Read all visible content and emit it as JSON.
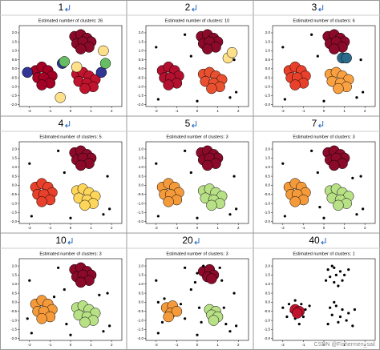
{
  "axes": {
    "xlim": [
      -2.5,
      2.5
    ],
    "ylim": [
      -2.1,
      2.4
    ],
    "xticks": [
      -2,
      -1,
      0,
      1,
      2
    ],
    "yticks": [
      {
        "value": -2.0,
        "label": "-2.0"
      },
      -1.5,
      {
        "value": -1.0,
        "label": "-1.0"
      },
      -0.5,
      {
        "value": 0.0,
        "label": "0.0"
      },
      0.5,
      {
        "value": 1.0,
        "label": "1.0"
      },
      1.5,
      {
        "value": 2.0,
        "label": "2.0"
      }
    ]
  },
  "watermark": "CSDN @Fishermen_sail",
  "chart_data": [
    {
      "type": "scatter",
      "header": "1",
      "title": "Estimated number of clusters: 26",
      "series": [
        {
          "color": "#8b0a2a",
          "x": [
            0.2,
            0.5,
            0.8,
            1.0,
            0.3,
            0.6,
            0.9,
            0.5
          ],
          "y": [
            1.8,
            1.9,
            1.7,
            1.5,
            1.4,
            1.5,
            1.2,
            1.1
          ]
        },
        {
          "color": "#a50026",
          "x": [
            -1.7,
            -1.4,
            -1.1,
            -0.9,
            -1.6,
            -1.3,
            -1.0,
            -1.4
          ],
          "y": [
            -0.1,
            0.1,
            -0.1,
            -0.4,
            -0.5,
            -0.5,
            -0.8,
            -0.9
          ]
        },
        {
          "color": "#c0132d",
          "x": [
            0.3,
            0.6,
            0.9,
            1.2,
            0.4,
            0.8,
            1.1,
            0.7
          ],
          "y": [
            -0.3,
            -0.2,
            -0.4,
            -0.6,
            -0.7,
            -0.8,
            -1.0,
            -1.1
          ]
        },
        {
          "color": "#313695",
          "x": [
            -2.1,
            1.5,
            -0.4
          ],
          "y": [
            -0.2,
            -0.2,
            0.3
          ]
        },
        {
          "color": "#66bd63",
          "x": [
            -0.3,
            1.7
          ],
          "y": [
            0.4,
            0.3
          ]
        },
        {
          "color": "#fee08b",
          "x": [
            1.6,
            0.3,
            -0.5
          ],
          "y": [
            1.0,
            0.1,
            -1.6
          ]
        }
      ]
    },
    {
      "type": "scatter",
      "header": "2",
      "title": "Estimated number of clusters: 10",
      "series": [
        {
          "color": "#8b0a2a",
          "x": [
            0.2,
            0.5,
            0.8,
            1.0,
            0.3,
            0.6,
            0.9,
            0.5
          ],
          "y": [
            1.8,
            1.9,
            1.7,
            1.5,
            1.4,
            1.5,
            1.2,
            1.1
          ]
        },
        {
          "color": "#b2102e",
          "x": [
            -1.7,
            -1.4,
            -1.1,
            -0.9,
            -1.6,
            -1.3,
            -1.0,
            -1.4
          ],
          "y": [
            -0.1,
            0.1,
            -0.1,
            -0.4,
            -0.5,
            -0.5,
            -0.8,
            -0.9
          ]
        },
        {
          "color": "#e8502f",
          "x": [
            0.3,
            0.6,
            0.9,
            1.2,
            0.4,
            0.8,
            1.1,
            0.7
          ],
          "y": [
            -0.3,
            -0.2,
            -0.4,
            -0.6,
            -0.7,
            -0.8,
            -1.0,
            -1.1
          ]
        },
        {
          "color": "#fee08b",
          "x": [
            1.5,
            1.7
          ],
          "y": [
            0.6,
            0.9
          ]
        },
        {
          "color": "#000000",
          "x": [
            -2.0,
            1.8,
            -0.3,
            1.6,
            -1.9,
            0.0,
            1.9,
            -0.6
          ],
          "y": [
            1.2,
            0.5,
            0.7,
            -1.6,
            -1.7,
            -1.8,
            -1.3,
            1.9
          ]
        }
      ]
    },
    {
      "type": "scatter",
      "header": "3",
      "title": "Estimated number of clusters: 6",
      "series": [
        {
          "color": "#8b0a2a",
          "x": [
            0.2,
            0.5,
            0.8,
            1.0,
            0.3,
            0.6,
            0.9,
            0.5
          ],
          "y": [
            1.8,
            1.9,
            1.7,
            1.5,
            1.4,
            1.5,
            1.2,
            1.1
          ]
        },
        {
          "color": "#e8402a",
          "x": [
            -1.7,
            -1.4,
            -1.1,
            -0.9,
            -1.6,
            -1.3,
            -1.0,
            -1.4
          ],
          "y": [
            -0.1,
            0.1,
            -0.1,
            -0.4,
            -0.5,
            -0.5,
            -0.8,
            -0.9
          ]
        },
        {
          "color": "#f9a040",
          "x": [
            0.3,
            0.6,
            0.9,
            1.2,
            0.4,
            0.8,
            1.1,
            0.7
          ],
          "y": [
            -0.3,
            -0.2,
            -0.4,
            -0.6,
            -0.7,
            -0.8,
            -1.0,
            -1.1
          ]
        },
        {
          "color": "#2b6a8a",
          "x": [
            0.9,
            1.1
          ],
          "y": [
            0.6,
            0.6
          ]
        },
        {
          "color": "#000000",
          "x": [
            -2.0,
            1.8,
            -0.3,
            1.6,
            -1.9,
            0.0,
            1.9,
            -0.6
          ],
          "y": [
            1.2,
            0.5,
            0.7,
            -1.6,
            -1.7,
            -1.8,
            -1.3,
            1.9
          ]
        }
      ]
    },
    {
      "type": "scatter",
      "header": "4",
      "title": "Estimated number of clusters: 5",
      "series": [
        {
          "color": "#8b0a2a",
          "x": [
            0.2,
            0.5,
            0.8,
            1.0,
            0.3,
            0.6,
            0.9,
            0.5
          ],
          "y": [
            1.8,
            1.9,
            1.7,
            1.5,
            1.4,
            1.5,
            1.2,
            1.1
          ]
        },
        {
          "color": "#e8402a",
          "x": [
            -1.7,
            -1.4,
            -1.1,
            -0.9,
            -1.6,
            -1.3,
            -1.0,
            -1.4
          ],
          "y": [
            -0.1,
            0.1,
            -0.1,
            -0.4,
            -0.5,
            -0.5,
            -0.8,
            -0.9
          ]
        },
        {
          "color": "#fdd55a",
          "x": [
            0.3,
            0.6,
            0.9,
            1.2,
            0.4,
            0.8,
            1.1,
            0.7
          ],
          "y": [
            -0.3,
            -0.2,
            -0.4,
            -0.6,
            -0.7,
            -0.8,
            -1.0,
            -1.1
          ]
        },
        {
          "color": "#000000",
          "x": [
            -2.0,
            1.8,
            -0.3,
            1.6,
            -1.9,
            0.0,
            1.9,
            -0.6
          ],
          "y": [
            1.2,
            0.5,
            0.7,
            -1.6,
            -1.7,
            -1.8,
            -1.3,
            1.9
          ]
        }
      ]
    },
    {
      "type": "scatter",
      "header": "5",
      "title": "Estimated number of clusters: 3",
      "series": [
        {
          "color": "#8b0a2a",
          "x": [
            0.2,
            0.5,
            0.8,
            1.0,
            0.3,
            0.6,
            0.9,
            0.5
          ],
          "y": [
            1.8,
            1.9,
            1.7,
            1.5,
            1.4,
            1.5,
            1.2,
            1.1
          ]
        },
        {
          "color": "#f59a3a",
          "x": [
            -1.7,
            -1.4,
            -1.1,
            -0.9,
            -1.6,
            -1.3,
            -1.0,
            -1.4
          ],
          "y": [
            -0.1,
            0.1,
            -0.1,
            -0.4,
            -0.5,
            -0.5,
            -0.8,
            -0.9
          ]
        },
        {
          "color": "#b8e186",
          "x": [
            0.3,
            0.6,
            0.9,
            1.2,
            0.4,
            0.8,
            1.1,
            0.7
          ],
          "y": [
            -0.3,
            -0.2,
            -0.4,
            -0.6,
            -0.7,
            -0.8,
            -1.0,
            -1.1
          ]
        },
        {
          "color": "#000000",
          "x": [
            -2.0,
            1.8,
            -0.3,
            1.6,
            -1.9,
            0.0,
            1.9,
            -0.6
          ],
          "y": [
            1.2,
            0.5,
            0.7,
            -1.6,
            -1.7,
            -1.8,
            -1.3,
            1.9
          ]
        }
      ]
    },
    {
      "type": "scatter",
      "header": "7",
      "title": "Estimated number of clusters: 3",
      "series": [
        {
          "color": "#8b0a2a",
          "x": [
            0.2,
            0.5,
            0.8,
            1.0,
            0.3,
            0.6,
            0.9,
            0.5
          ],
          "y": [
            1.8,
            1.9,
            1.7,
            1.5,
            1.4,
            1.5,
            1.2,
            1.1
          ]
        },
        {
          "color": "#f59a3a",
          "x": [
            -1.7,
            -1.4,
            -1.1,
            -0.9,
            -1.6,
            -1.3,
            -1.0,
            -1.4
          ],
          "y": [
            -0.1,
            0.1,
            -0.1,
            -0.4,
            -0.5,
            -0.5,
            -0.8,
            -0.9
          ]
        },
        {
          "color": "#b8e186",
          "x": [
            0.3,
            0.6,
            0.9,
            1.2,
            0.4,
            0.8,
            1.1,
            0.7
          ],
          "y": [
            -0.3,
            -0.2,
            -0.4,
            -0.6,
            -0.7,
            -0.8,
            -1.0,
            -1.1
          ]
        },
        {
          "color": "#000000",
          "x": [
            -2.0,
            1.8,
            -0.3,
            1.6,
            -1.9,
            0.0,
            1.9,
            -0.6,
            1.4,
            -0.2
          ],
          "y": [
            1.2,
            0.5,
            0.7,
            -1.6,
            -1.7,
            -1.8,
            -1.3,
            1.9,
            0.4,
            -1.2
          ]
        }
      ]
    },
    {
      "type": "scatter",
      "header": "10",
      "title": "Estimated number of clusters: 3",
      "series": [
        {
          "color": "#8b0a2a",
          "x": [
            0.2,
            0.5,
            0.8,
            1.0,
            0.3,
            0.6,
            0.9,
            0.5
          ],
          "y": [
            1.8,
            1.9,
            1.7,
            1.5,
            1.4,
            1.5,
            1.2,
            1.1
          ]
        },
        {
          "color": "#f59a3a",
          "x": [
            -1.7,
            -1.4,
            -1.1,
            -0.9,
            -1.6,
            -1.3,
            -1.0,
            -1.4
          ],
          "y": [
            -0.1,
            0.1,
            -0.1,
            -0.4,
            -0.5,
            -0.5,
            -0.8,
            -0.9
          ]
        },
        {
          "color": "#b8e186",
          "x": [
            0.3,
            0.6,
            0.9,
            1.2,
            0.4,
            0.8,
            1.1,
            0.7
          ],
          "y": [
            -0.3,
            -0.2,
            -0.4,
            -0.6,
            -0.7,
            -0.8,
            -1.0,
            -1.1
          ]
        },
        {
          "color": "#000000",
          "x": [
            -2.0,
            1.8,
            -0.3,
            1.6,
            -1.9,
            0.0,
            1.9,
            -0.6,
            1.4,
            -0.2,
            -2.1,
            -0.8
          ],
          "y": [
            1.2,
            0.5,
            0.7,
            -1.6,
            -1.7,
            -1.8,
            -1.3,
            1.9,
            0.4,
            -1.2,
            -0.9,
            0.3
          ]
        }
      ]
    },
    {
      "type": "scatter",
      "header": "20",
      "title": "Estimated number of clusters: 3",
      "series": [
        {
          "color": "#8b0a2a",
          "x": [
            0.3,
            0.6,
            0.8,
            0.5,
            0.7
          ],
          "y": [
            1.7,
            1.8,
            1.5,
            1.4,
            1.3
          ]
        },
        {
          "color": "#f59a3a",
          "x": [
            -1.5,
            -1.2,
            -1.3,
            -1.0,
            -1.4
          ],
          "y": [
            -0.3,
            -0.2,
            -0.6,
            -0.5,
            -0.8
          ]
        },
        {
          "color": "#b8e186",
          "x": [
            0.6,
            0.9,
            0.7,
            1.0,
            0.8
          ],
          "y": [
            -0.4,
            -0.5,
            -0.7,
            -0.8,
            -1.0
          ]
        },
        {
          "color": "#000000",
          "x": [
            0.0,
            0.3,
            1.1,
            1.2,
            -0.1,
            -1.9,
            -1.7,
            -0.8,
            -0.6,
            -1.6,
            0.1,
            1.3,
            1.4,
            0.2,
            -2.0,
            1.8,
            -0.3,
            1.6,
            -1.9,
            0.0,
            1.9,
            -0.6
          ],
          "y": [
            1.6,
            2.0,
            1.9,
            1.2,
            1.1,
            0.0,
            -1.1,
            -0.1,
            -0.9,
            0.2,
            -0.3,
            -0.3,
            -1.2,
            -1.1,
            1.2,
            0.5,
            0.7,
            -1.6,
            -1.7,
            -1.8,
            -1.3,
            1.9
          ]
        }
      ]
    },
    {
      "type": "scatter",
      "header": "40",
      "title": "Estimated number of clusters: 1",
      "series": [
        {
          "color": "#000000",
          "x": [
            0.2,
            0.5,
            0.8,
            1.0,
            0.3,
            0.6,
            0.9,
            0.5,
            0.1,
            1.2,
            0.4,
            0.7
          ],
          "y": [
            1.8,
            1.9,
            1.7,
            1.5,
            1.4,
            1.5,
            1.2,
            1.1,
            1.2,
            1.8,
            2.0,
            0.9
          ]
        },
        {
          "color": "#000000",
          "x": [
            -1.7,
            -1.4,
            -1.1,
            -0.9,
            -1.6,
            -1.3,
            -1.0,
            -1.4,
            -2.0,
            -0.7,
            -1.2,
            -1.8
          ],
          "y": [
            -0.1,
            0.1,
            -0.1,
            -0.4,
            -0.5,
            -0.5,
            -0.8,
            -0.9,
            -0.3,
            -0.2,
            -1.2,
            -0.8
          ]
        },
        {
          "color": "#000000",
          "x": [
            0.3,
            0.6,
            0.9,
            1.2,
            0.4,
            0.8,
            1.1,
            0.7,
            1.5,
            0.2,
            1.4,
            0.5
          ],
          "y": [
            -0.3,
            -0.2,
            -0.4,
            -0.6,
            -0.7,
            -0.8,
            -1.0,
            -1.1,
            -0.4,
            -1.2,
            -1.3,
            0.0
          ]
        },
        {
          "color": "#c0132d",
          "x": [
            -1.4,
            -1.2,
            -1.3
          ],
          "y": [
            -0.4,
            -0.5,
            -0.6
          ]
        }
      ]
    }
  ]
}
